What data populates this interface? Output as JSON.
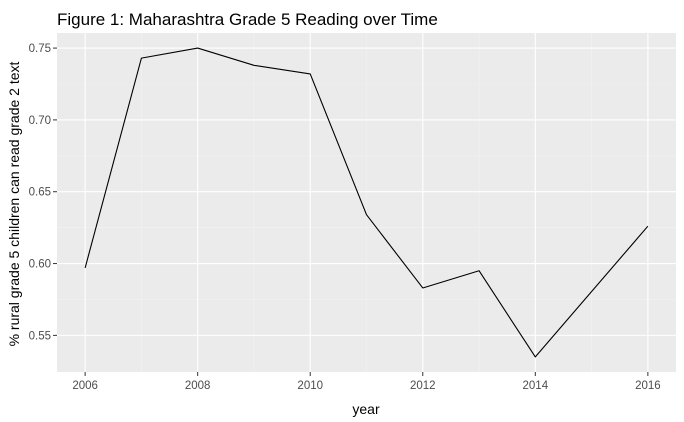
{
  "chart_data": {
    "type": "line",
    "title": "Figure 1: Maharashtra Grade 5 Reading over Time",
    "xlabel": "year",
    "ylabel": "% rural grade 5 children can read grade 2 text",
    "x": [
      2006,
      2007,
      2008,
      2009,
      2010,
      2011,
      2012,
      2013,
      2014,
      2016
    ],
    "series": [
      {
        "values": [
          0.597,
          0.743,
          0.75,
          0.738,
          0.732,
          0.634,
          0.583,
          0.595,
          0.535,
          0.626
        ]
      }
    ],
    "xlim": [
      2005.5,
      2016.5
    ],
    "ylim": [
      0.5245,
      0.7605
    ],
    "x_ticks": [
      2006,
      2008,
      2010,
      2012,
      2014,
      2016
    ],
    "x_tick_labels": [
      "2006",
      "2008",
      "2010",
      "2012",
      "2014",
      "2016"
    ],
    "y_ticks": [
      0.55,
      0.6,
      0.65,
      0.7,
      0.75
    ],
    "y_tick_labels": [
      "0.55",
      "0.60",
      "0.65",
      "0.70",
      "0.75"
    ],
    "grid": true,
    "legend": "none",
    "colors": {
      "panel_background": "#ebebeb",
      "grid_major": "#ffffff",
      "grid_minor": "#f2f2f2",
      "line": "#000000",
      "tick_mark": "#333333",
      "tick_text": "#4d4d4d"
    }
  }
}
